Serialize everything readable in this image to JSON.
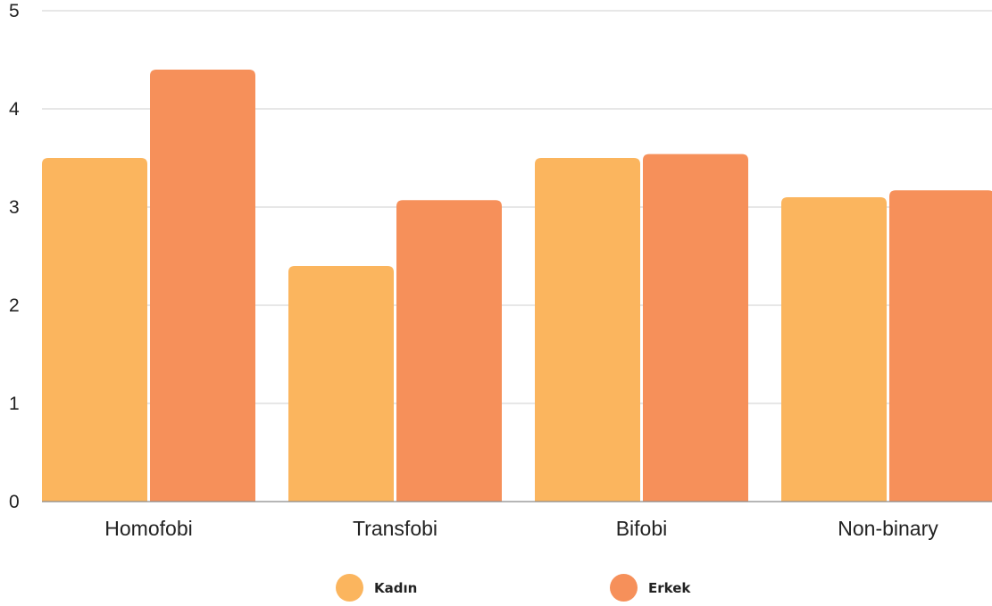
{
  "chart_data": {
    "type": "bar",
    "categories": [
      "Homofobi",
      "Transfobi",
      "Bifobi",
      "Non-binary"
    ],
    "series": [
      {
        "name": "Kadın",
        "values": [
          3.5,
          2.4,
          3.5,
          3.1
        ],
        "color": "#FBB55E"
      },
      {
        "name": "Erkek",
        "values": [
          4.4,
          3.07,
          3.54,
          3.17
        ],
        "color": "#F6905A"
      }
    ],
    "y_ticks": [
      "0",
      "1",
      "2",
      "3",
      "4",
      "5"
    ],
    "ylim": [
      0,
      5
    ],
    "grid": true,
    "legend_position": "bottom"
  }
}
